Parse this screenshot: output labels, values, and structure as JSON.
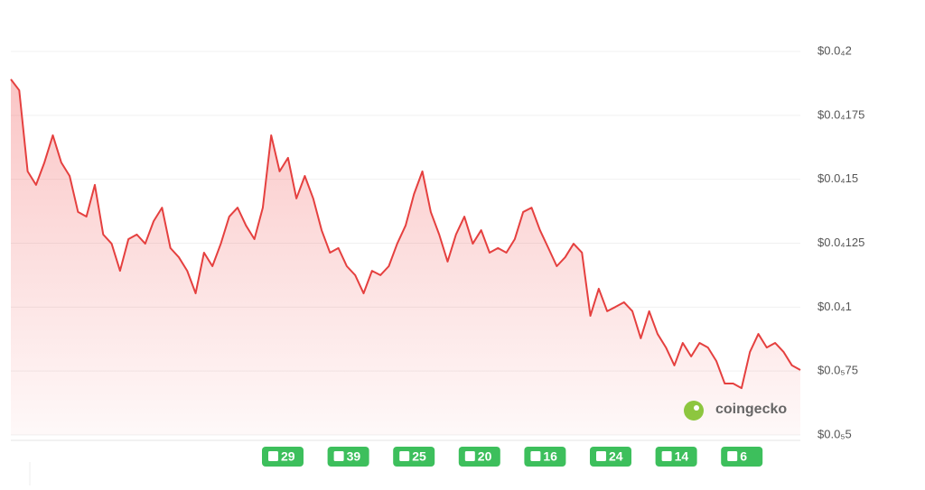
{
  "chart_data": {
    "type": "line",
    "series": [
      {
        "color": "#e5403f",
        "values": [
          1.891e-05,
          1.848e-05,
          1.531e-05,
          1.478e-05,
          1.566e-05,
          1.672e-05,
          1.566e-05,
          1.513e-05,
          1.372e-05,
          1.354e-05,
          1.478e-05,
          1.284e-05,
          1.248e-05,
          1.142e-05,
          1.266e-05,
          1.284e-05,
          1.248e-05,
          1.336e-05,
          1.389e-05,
          1.231e-05,
          1.195e-05,
          1.142e-05,
          1.054e-05,
          1.213e-05,
          1.16e-05,
          1.248e-05,
          1.354e-05,
          1.389e-05,
          1.319e-05,
          1.266e-05,
          1.389e-05,
          1.672e-05,
          1.531e-05,
          1.584e-05,
          1.425e-05,
          1.513e-05,
          1.425e-05,
          1.301e-05,
          1.213e-05,
          1.231e-05,
          1.16e-05,
          1.125e-05,
          1.054e-05,
          1.142e-05,
          1.125e-05,
          1.16e-05,
          1.248e-05,
          1.319e-05,
          1.442e-05,
          1.531e-05,
          1.372e-05,
          1.284e-05,
          1.178e-05,
          1.284e-05,
          1.354e-05,
          1.248e-05,
          1.301e-05,
          1.213e-05,
          1.231e-05,
          1.213e-05,
          1.266e-05,
          1.372e-05,
          1.389e-05,
          1.301e-05,
          1.231e-05,
          1.16e-05,
          1.195e-05,
          1.248e-05,
          1.213e-05,
          9.66e-06,
          1.072e-05,
          9.84e-06,
          1.001e-05,
          1.019e-05,
          9.84e-06,
          8.78e-06,
          9.84e-06,
          8.95e-06,
          8.42e-06,
          7.72e-06,
          8.6e-06,
          8.07e-06,
          8.6e-06,
          8.42e-06,
          7.89e-06,
          7.01e-06,
          7.01e-06,
          6.83e-06,
          8.25e-06,
          8.95e-06,
          8.42e-06,
          8.6e-06,
          8.25e-06,
          7.72e-06,
          7.54e-06
        ]
      }
    ],
    "ylim": [
      5e-06,
      2e-05
    ],
    "yticks": [
      {
        "value": 2e-05,
        "label": "$0.0₄2"
      },
      {
        "value": 1.75e-05,
        "label": "$0.0₄175"
      },
      {
        "value": 1.5e-05,
        "label": "$0.0₄15"
      },
      {
        "value": 1.25e-05,
        "label": "$0.0₄125"
      },
      {
        "value": 1e-05,
        "label": "$0.0₄1"
      },
      {
        "value": 7.5e-06,
        "label": "$0.0₅75"
      },
      {
        "value": 5e-06,
        "label": "$0.0₅5"
      }
    ],
    "grid": true,
    "annotations": [
      "29",
      "39",
      "25",
      "20",
      "16",
      "24",
      "14",
      "6"
    ],
    "watermark": "coingecko"
  }
}
